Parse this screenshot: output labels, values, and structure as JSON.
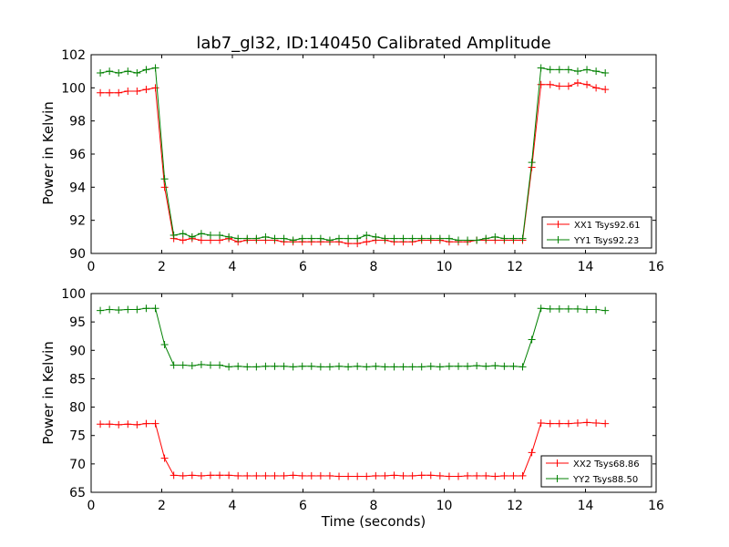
{
  "chart_data": [
    {
      "type": "line",
      "title": "lab7_gl32, ID:140450 Calibrated Amplitude",
      "xlabel": "",
      "ylabel": "Power in Kelvin",
      "xlim": [
        0,
        16
      ],
      "ylim": [
        90,
        102
      ],
      "xticks": [
        0,
        2,
        4,
        6,
        8,
        10,
        12,
        14,
        16
      ],
      "yticks": [
        90,
        92,
        94,
        96,
        98,
        100,
        102
      ],
      "legend_position": "bottom-right",
      "x": [
        0.26,
        0.52,
        0.78,
        1.04,
        1.3,
        1.56,
        1.82,
        2.08,
        2.34,
        2.6,
        2.86,
        3.12,
        3.38,
        3.64,
        3.9,
        4.16,
        4.42,
        4.68,
        4.94,
        5.2,
        5.46,
        5.72,
        5.98,
        6.24,
        6.5,
        6.76,
        7.02,
        7.28,
        7.54,
        7.8,
        8.06,
        8.32,
        8.58,
        8.84,
        9.1,
        9.36,
        9.62,
        9.88,
        10.14,
        10.4,
        10.66,
        10.92,
        11.18,
        11.44,
        11.7,
        11.96,
        12.22,
        12.48,
        12.74,
        13.0,
        13.26,
        13.52,
        13.78,
        14.04,
        14.3,
        14.56
      ],
      "series": [
        {
          "name": "XX1 Tsys92.61",
          "color": "#ff0000",
          "values": [
            99.7,
            99.7,
            99.7,
            99.8,
            99.8,
            99.9,
            100.0,
            94.0,
            90.9,
            90.8,
            90.9,
            90.8,
            90.8,
            90.8,
            90.9,
            90.7,
            90.8,
            90.8,
            90.8,
            90.8,
            90.7,
            90.7,
            90.7,
            90.7,
            90.7,
            90.7,
            90.7,
            90.6,
            90.6,
            90.7,
            90.8,
            90.8,
            90.7,
            90.7,
            90.7,
            90.8,
            90.8,
            90.8,
            90.7,
            90.7,
            90.7,
            90.8,
            90.8,
            90.8,
            90.8,
            90.8,
            90.8,
            95.2,
            100.2,
            100.2,
            100.1,
            100.1,
            100.3,
            100.2,
            100.0,
            99.9
          ]
        },
        {
          "name": "YY1 Tsys92.23",
          "color": "#008000",
          "values": [
            100.9,
            101.0,
            100.9,
            101.0,
            100.9,
            101.1,
            101.2,
            94.5,
            91.1,
            91.2,
            91.0,
            91.2,
            91.1,
            91.1,
            91.0,
            90.9,
            90.9,
            90.9,
            91.0,
            90.9,
            90.9,
            90.8,
            90.9,
            90.9,
            90.9,
            90.8,
            90.9,
            90.9,
            90.9,
            91.1,
            91.0,
            90.9,
            90.9,
            90.9,
            90.9,
            90.9,
            90.9,
            90.9,
            90.9,
            90.8,
            90.8,
            90.8,
            90.9,
            91.0,
            90.9,
            90.9,
            90.9,
            95.5,
            101.2,
            101.1,
            101.1,
            101.1,
            101.0,
            101.1,
            101.0,
            100.9
          ]
        }
      ]
    },
    {
      "type": "line",
      "title": "",
      "xlabel": "Time (seconds)",
      "ylabel": "Power in Kelvin",
      "xlim": [
        0,
        16
      ],
      "ylim": [
        65,
        100
      ],
      "xticks": [
        0,
        2,
        4,
        6,
        8,
        10,
        12,
        14,
        16
      ],
      "yticks": [
        65,
        70,
        75,
        80,
        85,
        90,
        95,
        100
      ],
      "legend_position": "bottom-right",
      "x": [
        0.26,
        0.52,
        0.78,
        1.04,
        1.3,
        1.56,
        1.82,
        2.08,
        2.34,
        2.6,
        2.86,
        3.12,
        3.38,
        3.64,
        3.9,
        4.16,
        4.42,
        4.68,
        4.94,
        5.2,
        5.46,
        5.72,
        5.98,
        6.24,
        6.5,
        6.76,
        7.02,
        7.28,
        7.54,
        7.8,
        8.06,
        8.32,
        8.58,
        8.84,
        9.1,
        9.36,
        9.62,
        9.88,
        10.14,
        10.4,
        10.66,
        10.92,
        11.18,
        11.44,
        11.7,
        11.96,
        12.22,
        12.48,
        12.74,
        13.0,
        13.26,
        13.52,
        13.78,
        14.04,
        14.3,
        14.56
      ],
      "series": [
        {
          "name": "XX2 Tsys68.86",
          "color": "#ff0000",
          "values": [
            77.0,
            77.0,
            76.9,
            77.0,
            76.9,
            77.1,
            77.1,
            71.0,
            68.0,
            67.9,
            68.0,
            67.9,
            68.0,
            68.0,
            68.0,
            67.9,
            67.9,
            67.9,
            67.9,
            67.9,
            67.9,
            68.0,
            67.9,
            67.9,
            67.9,
            67.9,
            67.8,
            67.8,
            67.8,
            67.8,
            67.9,
            67.9,
            68.0,
            67.9,
            67.9,
            68.0,
            68.0,
            67.9,
            67.8,
            67.8,
            67.9,
            67.9,
            67.9,
            67.8,
            67.9,
            67.9,
            67.9,
            72.0,
            77.2,
            77.1,
            77.1,
            77.1,
            77.2,
            77.3,
            77.2,
            77.1
          ]
        },
        {
          "name": "YY2 Tsys88.50",
          "color": "#008000",
          "values": [
            97.0,
            97.2,
            97.1,
            97.2,
            97.2,
            97.4,
            97.4,
            91.0,
            87.4,
            87.4,
            87.3,
            87.5,
            87.4,
            87.4,
            87.1,
            87.2,
            87.1,
            87.1,
            87.2,
            87.2,
            87.2,
            87.1,
            87.2,
            87.2,
            87.1,
            87.1,
            87.2,
            87.1,
            87.2,
            87.1,
            87.2,
            87.1,
            87.1,
            87.1,
            87.1,
            87.1,
            87.2,
            87.1,
            87.2,
            87.2,
            87.2,
            87.3,
            87.2,
            87.3,
            87.2,
            87.2,
            87.1,
            91.9,
            97.4,
            97.3,
            97.3,
            97.3,
            97.3,
            97.2,
            97.2,
            97.0
          ]
        }
      ]
    }
  ]
}
